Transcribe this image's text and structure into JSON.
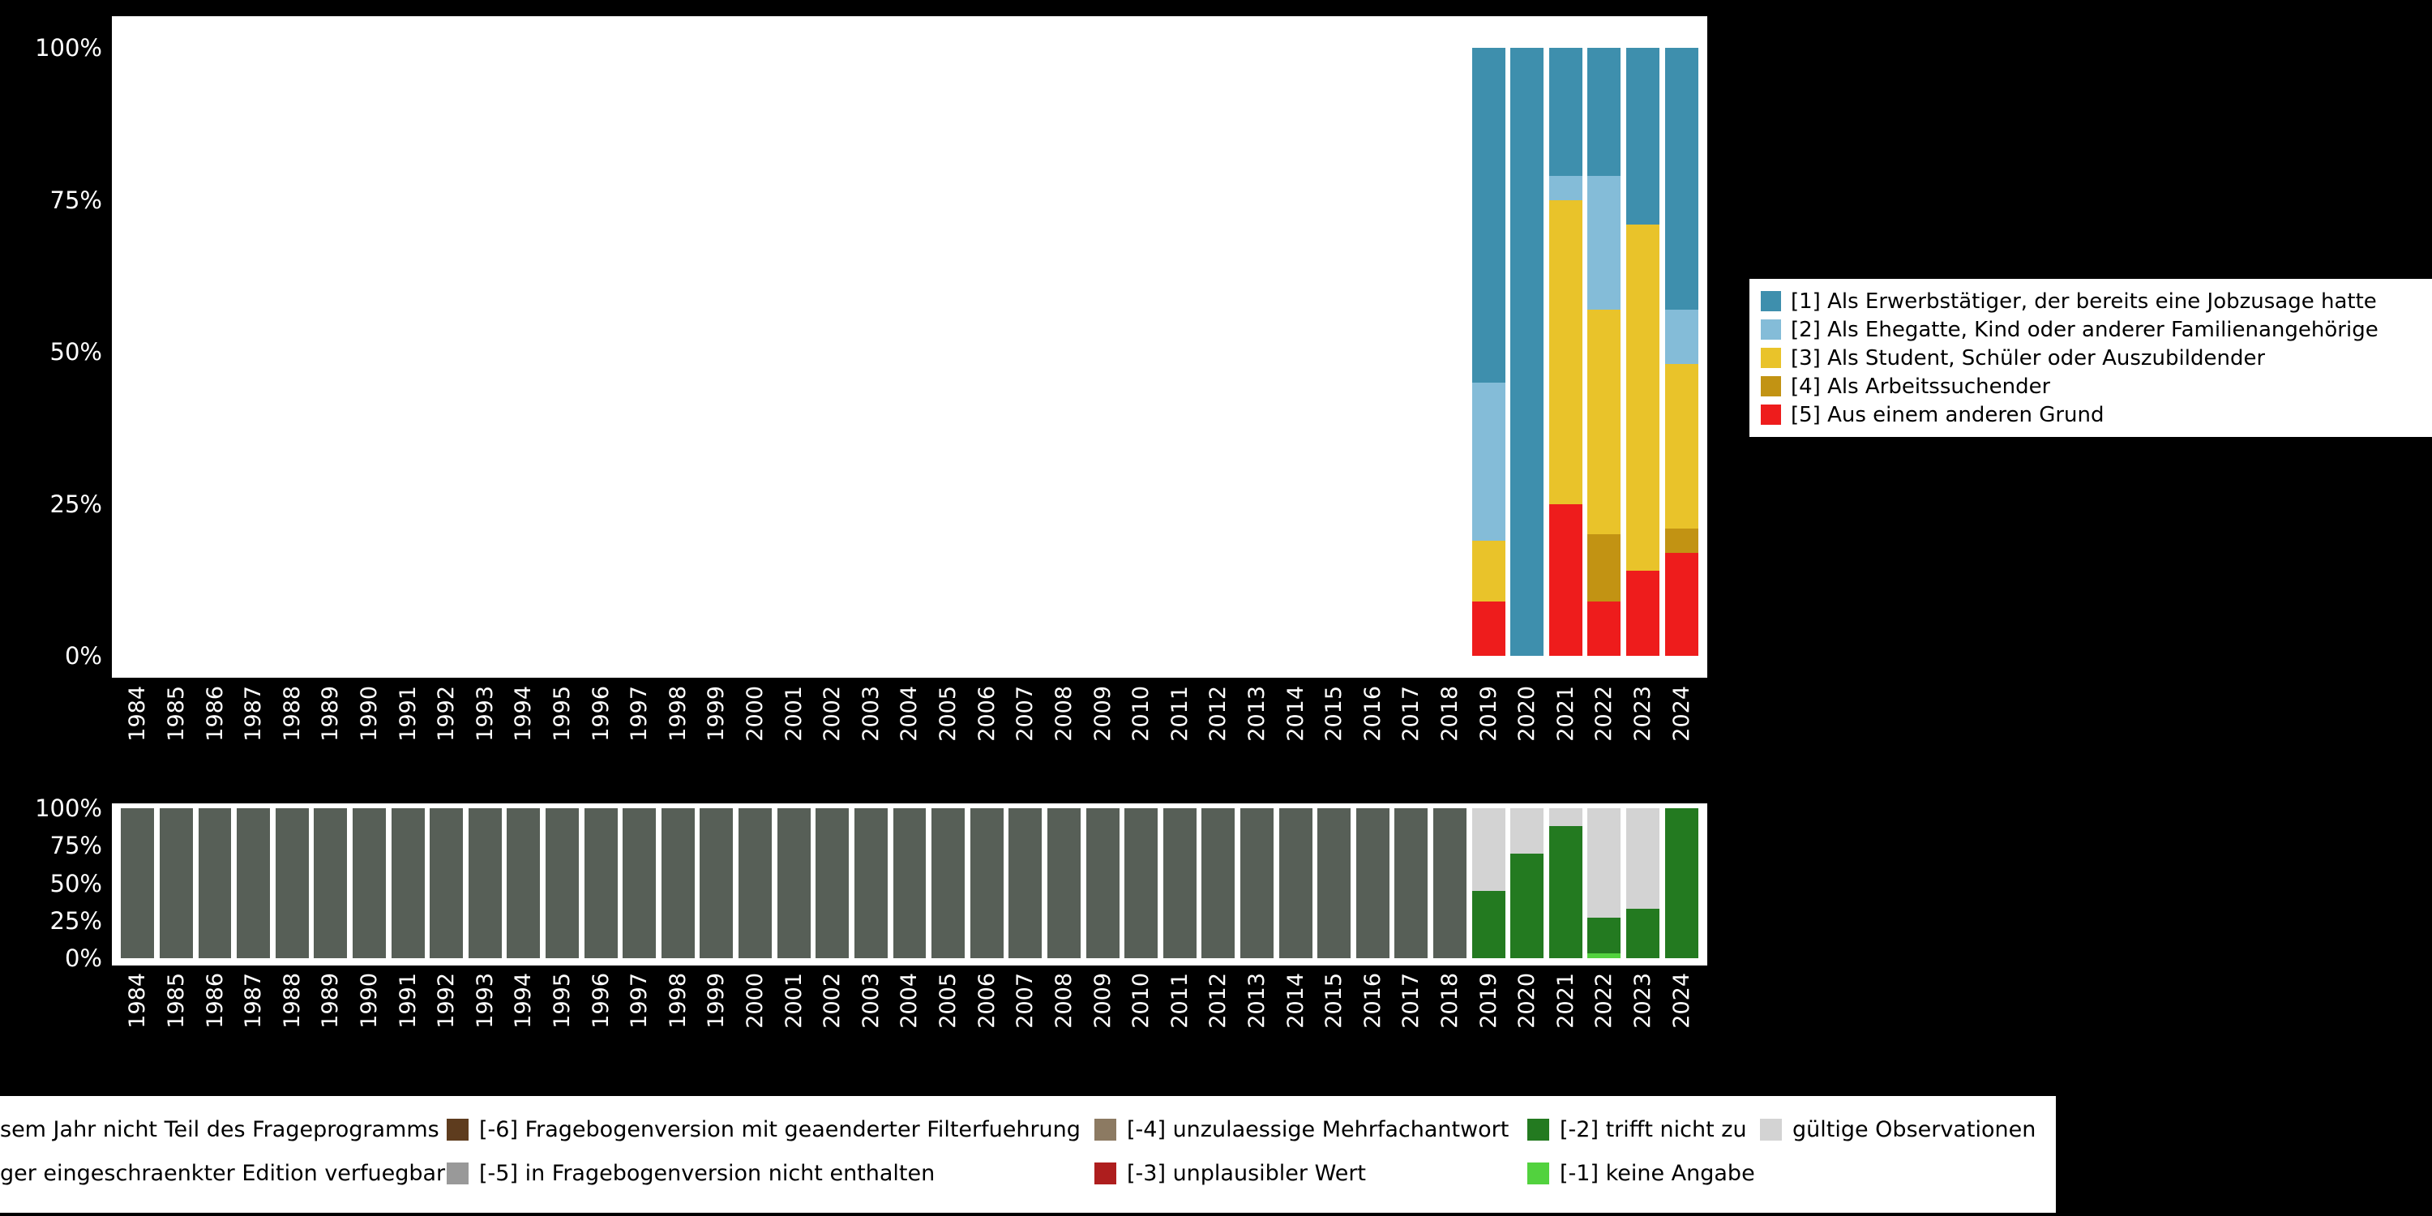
{
  "colors": {
    "background": "#000000",
    "panel": "#ffffff",
    "axis_text": "#ffffff",
    "legend_background": "#ffffff",
    "legend_text": "#000000"
  },
  "top_legend": {
    "items": [
      {
        "label": "[1] Als Erwerbstätiger, der bereits eine Jobzusage hatte",
        "color": "#3e8fad"
      },
      {
        "label": "[2] Als Ehegatte, Kind oder anderer Familienangehörige",
        "color": "#84bcd8"
      },
      {
        "label": "[3] Als Student, Schüler oder Auszubildender",
        "color": "#e9c32a"
      },
      {
        "label": "[4] Als Arbeitssuchender",
        "color": "#c29313"
      },
      {
        "label": "[5] Aus einem anderen Grund",
        "color": "#ee1c1c"
      }
    ]
  },
  "bottom_legend": {
    "rows": [
      [
        {
          "label": "sem Jahr nicht Teil des Frageprogramms",
          "color": null
        },
        {
          "label": "[-6] Fragebogenversion mit geaenderter Filterfuehrung",
          "color": "#5e3c1e"
        },
        {
          "label": "[-4] unzulaessige Mehrfachantwort",
          "color": "#8c7a62"
        },
        {
          "label": "[-2] trifft nicht zu",
          "color": "#237a20"
        },
        {
          "label": "gültige Observationen",
          "color": "#d3d3d3"
        }
      ],
      [
        {
          "label": "ger eingeschraenkter Edition verfuegbar",
          "color": null
        },
        {
          "label": "[-5] in Fragebogenversion nicht enthalten",
          "color": "#999999"
        },
        {
          "label": "[-3] unplausibler Wert",
          "color": "#ae1e1e"
        },
        {
          "label": "[-1] keine Angabe",
          "color": "#52d23e"
        }
      ]
    ]
  },
  "chart_data": [
    {
      "type": "bar",
      "stacked": true,
      "title": "",
      "xlabel": "",
      "ylabel": "",
      "ylim": [
        0,
        100
      ],
      "grid": false,
      "legend_position": "right",
      "x": [
        "1984",
        "1985",
        "1986",
        "1987",
        "1988",
        "1989",
        "1990",
        "1991",
        "1992",
        "1993",
        "1994",
        "1995",
        "1996",
        "1997",
        "1998",
        "1999",
        "2000",
        "2001",
        "2002",
        "2003",
        "2004",
        "2005",
        "2006",
        "2007",
        "2008",
        "2009",
        "2010",
        "2011",
        "2012",
        "2013",
        "2014",
        "2015",
        "2016",
        "2017",
        "2018",
        "2019",
        "2020",
        "2021",
        "2022",
        "2023",
        "2024"
      ],
      "yticks": [
        {
          "v": 0,
          "label": "0%"
        },
        {
          "v": 25,
          "label": "25%"
        },
        {
          "v": 50,
          "label": "50%"
        },
        {
          "v": 75,
          "label": "75%"
        },
        {
          "v": 100,
          "label": "100%"
        }
      ],
      "series_top_to_bottom": [
        {
          "name": "[1] Als Erwerbstätiger, der bereits eine Jobzusage hatte",
          "color": "#3e8fad",
          "values": [
            0,
            0,
            0,
            0,
            0,
            0,
            0,
            0,
            0,
            0,
            0,
            0,
            0,
            0,
            0,
            0,
            0,
            0,
            0,
            0,
            0,
            0,
            0,
            0,
            0,
            0,
            0,
            0,
            0,
            0,
            0,
            0,
            0,
            0,
            0,
            55,
            100,
            21,
            21,
            29,
            43
          ]
        },
        {
          "name": "[2] Als Ehegatte, Kind oder anderer Familienangehörige",
          "color": "#84bcd8",
          "values": [
            0,
            0,
            0,
            0,
            0,
            0,
            0,
            0,
            0,
            0,
            0,
            0,
            0,
            0,
            0,
            0,
            0,
            0,
            0,
            0,
            0,
            0,
            0,
            0,
            0,
            0,
            0,
            0,
            0,
            0,
            0,
            0,
            0,
            0,
            0,
            26,
            0,
            4,
            22,
            0,
            9
          ]
        },
        {
          "name": "[3] Als Student, Schüler oder Auszubildender",
          "color": "#e9c32a",
          "values": [
            0,
            0,
            0,
            0,
            0,
            0,
            0,
            0,
            0,
            0,
            0,
            0,
            0,
            0,
            0,
            0,
            0,
            0,
            0,
            0,
            0,
            0,
            0,
            0,
            0,
            0,
            0,
            0,
            0,
            0,
            0,
            0,
            0,
            0,
            0,
            10,
            0,
            50,
            37,
            57,
            27
          ]
        },
        {
          "name": "[4] Als Arbeitssuchender",
          "color": "#c29313",
          "values": [
            0,
            0,
            0,
            0,
            0,
            0,
            0,
            0,
            0,
            0,
            0,
            0,
            0,
            0,
            0,
            0,
            0,
            0,
            0,
            0,
            0,
            0,
            0,
            0,
            0,
            0,
            0,
            0,
            0,
            0,
            0,
            0,
            0,
            0,
            0,
            0,
            0,
            0,
            11,
            0,
            4
          ]
        },
        {
          "name": "[5] Aus einem anderen Grund",
          "color": "#ee1c1c",
          "values": [
            0,
            0,
            0,
            0,
            0,
            0,
            0,
            0,
            0,
            0,
            0,
            0,
            0,
            0,
            0,
            0,
            0,
            0,
            0,
            0,
            0,
            0,
            0,
            0,
            0,
            0,
            0,
            0,
            0,
            0,
            0,
            0,
            0,
            0,
            0,
            9,
            0,
            25,
            9,
            14,
            17
          ]
        }
      ]
    },
    {
      "type": "bar",
      "stacked": true,
      "title": "",
      "xlabel": "",
      "ylabel": "",
      "ylim": [
        0,
        100
      ],
      "grid": false,
      "legend_position": "bottom",
      "x": [
        "1984",
        "1985",
        "1986",
        "1987",
        "1988",
        "1989",
        "1990",
        "1991",
        "1992",
        "1993",
        "1994",
        "1995",
        "1996",
        "1997",
        "1998",
        "1999",
        "2000",
        "2001",
        "2002",
        "2003",
        "2004",
        "2005",
        "2006",
        "2007",
        "2008",
        "2009",
        "2010",
        "2011",
        "2012",
        "2013",
        "2014",
        "2015",
        "2016",
        "2017",
        "2018",
        "2019",
        "2020",
        "2021",
        "2022",
        "2023",
        "2024"
      ],
      "yticks": [
        {
          "v": 0,
          "label": "0%"
        },
        {
          "v": 25,
          "label": "25%"
        },
        {
          "v": 50,
          "label": "50%"
        },
        {
          "v": 75,
          "label": "75%"
        },
        {
          "v": 100,
          "label": "100%"
        }
      ],
      "series_top_to_bottom": [
        {
          "name": "gültige Observationen",
          "color": "#d3d3d3",
          "values": [
            0,
            0,
            0,
            0,
            0,
            0,
            0,
            0,
            0,
            0,
            0,
            0,
            0,
            0,
            0,
            0,
            0,
            0,
            0,
            0,
            0,
            0,
            0,
            0,
            0,
            0,
            0,
            0,
            0,
            0,
            0,
            0,
            0,
            0,
            0,
            55,
            30,
            12,
            73,
            67,
            0
          ]
        },
        {
          "name": "[-2] trifft nicht zu",
          "color": "#237a20",
          "values": [
            0,
            0,
            0,
            0,
            0,
            0,
            0,
            0,
            0,
            0,
            0,
            0,
            0,
            0,
            0,
            0,
            0,
            0,
            0,
            0,
            0,
            0,
            0,
            0,
            0,
            0,
            0,
            0,
            0,
            0,
            0,
            0,
            0,
            0,
            0,
            45,
            70,
            88,
            24,
            33,
            100
          ]
        },
        {
          "name": "[-1] keine Angabe",
          "color": "#52d23e",
          "values": [
            0,
            0,
            0,
            0,
            0,
            0,
            0,
            0,
            0,
            0,
            0,
            0,
            0,
            0,
            0,
            0,
            0,
            0,
            0,
            0,
            0,
            0,
            0,
            0,
            0,
            0,
            0,
            0,
            0,
            0,
            0,
            0,
            0,
            0,
            0,
            0,
            0,
            0,
            3,
            0,
            0
          ]
        },
        {
          "name": "sem Jahr nicht Teil des Frageprogramms",
          "color": "#575f57",
          "values": [
            100,
            100,
            100,
            100,
            100,
            100,
            100,
            100,
            100,
            100,
            100,
            100,
            100,
            100,
            100,
            100,
            100,
            100,
            100,
            100,
            100,
            100,
            100,
            100,
            100,
            100,
            100,
            100,
            100,
            100,
            100,
            100,
            100,
            100,
            100,
            0,
            0,
            0,
            0,
            0,
            0
          ]
        }
      ]
    }
  ]
}
